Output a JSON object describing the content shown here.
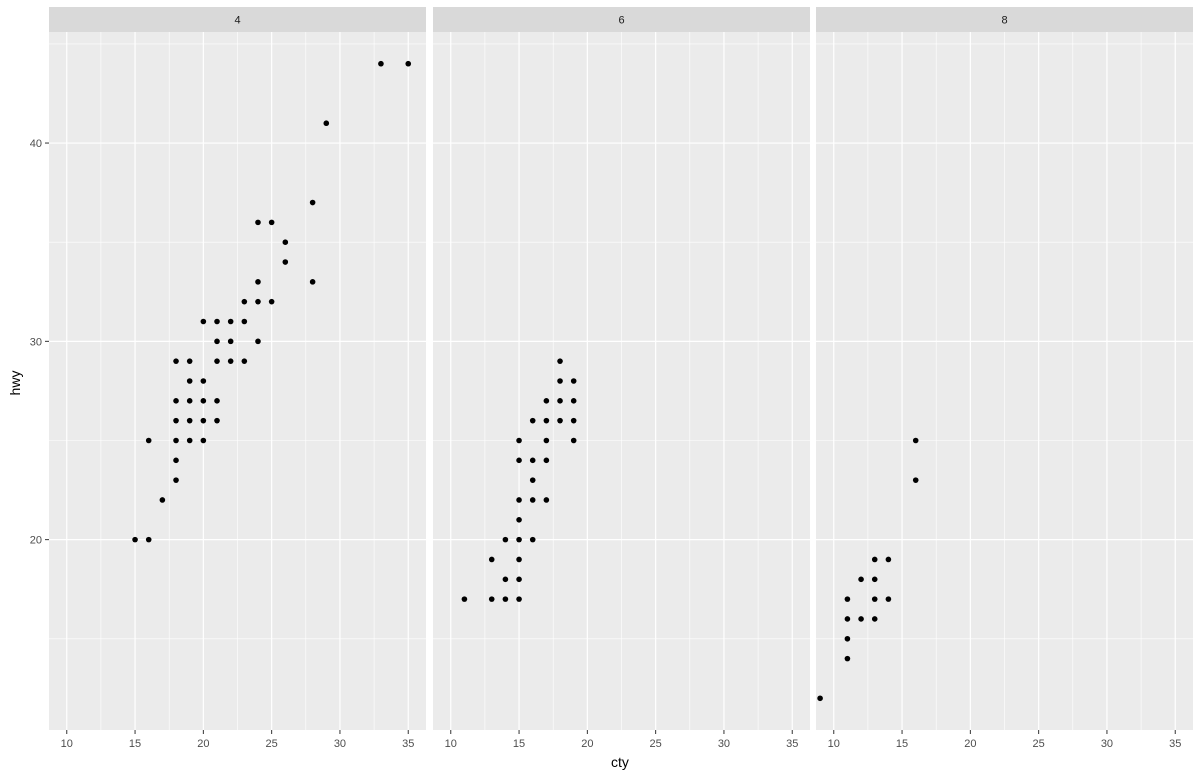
{
  "chart_data": {
    "type": "scatter",
    "xlabel": "cty",
    "ylabel": "hwy",
    "xlim": [
      8.7,
      36.3
    ],
    "ylim": [
      10.4,
      45.6
    ],
    "x_ticks": [
      10,
      15,
      20,
      25,
      30,
      35
    ],
    "y_ticks": [
      20,
      30,
      40
    ],
    "grid": true,
    "point_color": "#000000",
    "panel_background": "#ebebeb",
    "strip_background": "#d9d9d9",
    "grid_color": "#ffffff",
    "facets": [
      {
        "label": "4",
        "points": [
          [
            15,
            20
          ],
          [
            16,
            20
          ],
          [
            17,
            22
          ],
          [
            16,
            25
          ],
          [
            18,
            23
          ],
          [
            18,
            24
          ],
          [
            18,
            25
          ],
          [
            18,
            26
          ],
          [
            18,
            27
          ],
          [
            18,
            29
          ],
          [
            19,
            25
          ],
          [
            19,
            26
          ],
          [
            19,
            27
          ],
          [
            19,
            28
          ],
          [
            19,
            29
          ],
          [
            20,
            25
          ],
          [
            20,
            26
          ],
          [
            20,
            27
          ],
          [
            20,
            28
          ],
          [
            20,
            31
          ],
          [
            21,
            26
          ],
          [
            21,
            27
          ],
          [
            21,
            29
          ],
          [
            21,
            30
          ],
          [
            21,
            31
          ],
          [
            22,
            29
          ],
          [
            22,
            30
          ],
          [
            22,
            31
          ],
          [
            23,
            29
          ],
          [
            23,
            31
          ],
          [
            23,
            32
          ],
          [
            24,
            30
          ],
          [
            24,
            32
          ],
          [
            24,
            33
          ],
          [
            24,
            36
          ],
          [
            25,
            32
          ],
          [
            25,
            36
          ],
          [
            26,
            34
          ],
          [
            26,
            35
          ],
          [
            28,
            33
          ],
          [
            28,
            37
          ],
          [
            29,
            41
          ],
          [
            33,
            44
          ],
          [
            35,
            44
          ]
        ]
      },
      {
        "label": "6",
        "points": [
          [
            11,
            17
          ],
          [
            13,
            17
          ],
          [
            13,
            19
          ],
          [
            14,
            17
          ],
          [
            14,
            18
          ],
          [
            14,
            20
          ],
          [
            15,
            17
          ],
          [
            15,
            18
          ],
          [
            15,
            19
          ],
          [
            15,
            20
          ],
          [
            15,
            21
          ],
          [
            15,
            22
          ],
          [
            15,
            24
          ],
          [
            15,
            25
          ],
          [
            16,
            20
          ],
          [
            16,
            22
          ],
          [
            16,
            23
          ],
          [
            16,
            24
          ],
          [
            16,
            26
          ],
          [
            17,
            22
          ],
          [
            17,
            24
          ],
          [
            17,
            25
          ],
          [
            17,
            26
          ],
          [
            17,
            27
          ],
          [
            18,
            26
          ],
          [
            18,
            27
          ],
          [
            18,
            28
          ],
          [
            18,
            29
          ],
          [
            19,
            25
          ],
          [
            19,
            26
          ],
          [
            19,
            27
          ],
          [
            19,
            28
          ]
        ]
      },
      {
        "label": "8",
        "points": [
          [
            9,
            12
          ],
          [
            11,
            14
          ],
          [
            11,
            15
          ],
          [
            11,
            16
          ],
          [
            11,
            17
          ],
          [
            12,
            16
          ],
          [
            12,
            18
          ],
          [
            13,
            16
          ],
          [
            13,
            17
          ],
          [
            13,
            18
          ],
          [
            13,
            19
          ],
          [
            14,
            17
          ],
          [
            14,
            19
          ],
          [
            16,
            23
          ],
          [
            16,
            25
          ]
        ]
      }
    ]
  }
}
